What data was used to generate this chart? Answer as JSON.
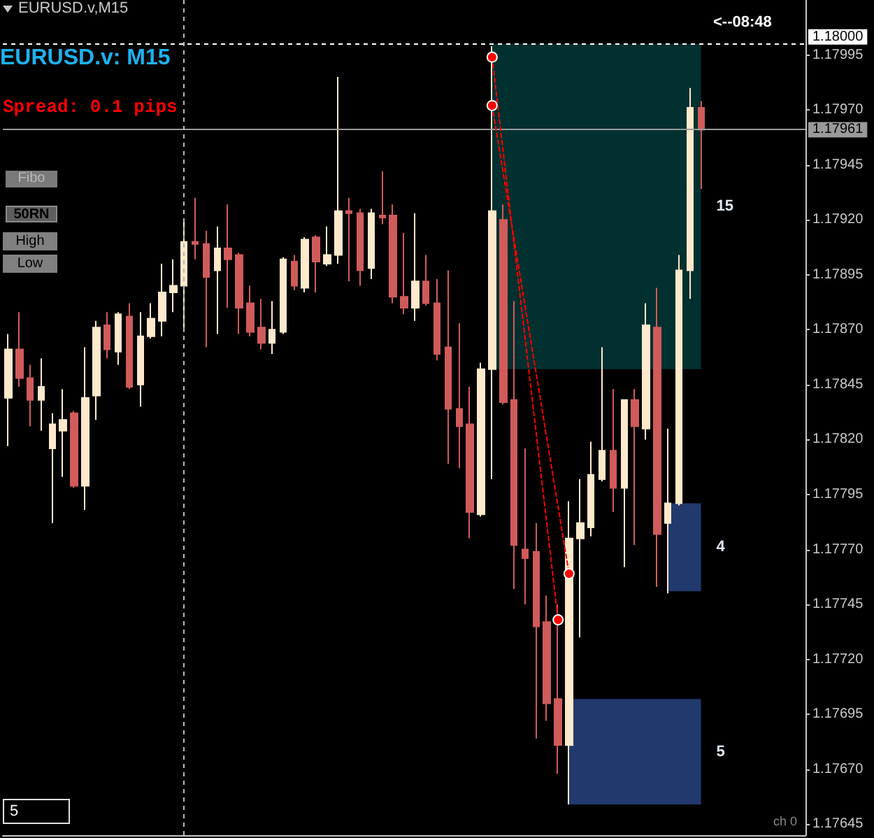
{
  "chart_data": {
    "type": "candlestick",
    "title": "EURUSD.v,M15",
    "subtitle": "EURUSD.v: M15",
    "annotations": [
      "Spread: 0.1 pips",
      "Fibo",
      "50RN",
      "High",
      "Low",
      "<--08:48",
      "5",
      "ch 0"
    ],
    "categories": [
      null,
      null,
      null,
      null,
      null,
      null,
      null,
      null,
      null,
      null,
      null,
      null,
      null,
      null,
      null,
      null,
      null,
      null,
      null,
      null,
      null,
      null,
      null,
      null,
      null,
      null,
      null,
      null,
      null,
      null,
      null,
      null,
      null,
      null,
      null,
      null,
      null,
      null,
      null,
      null,
      null,
      null,
      null,
      null,
      null,
      null,
      null,
      null,
      null,
      null,
      null,
      null,
      null,
      null,
      null,
      null,
      null,
      null,
      null,
      null,
      null,
      null,
      null,
      null,
      null,
      null,
      null,
      null,
      null,
      null,
      null,
      null,
      null
    ],
    "ohlc": [
      [
        1.17839,
        1.17868,
        1.17817,
        1.17861
      ],
      [
        1.17861,
        1.17878,
        1.17844,
        1.17848
      ],
      [
        1.17848,
        1.17854,
        1.17826,
        1.17838
      ],
      [
        1.17838,
        1.17857,
        1.17824,
        1.17844
      ],
      [
        1.17816,
        1.17832,
        1.17782,
        1.17827
      ],
      [
        1.17824,
        1.17843,
        1.17803,
        1.17829
      ],
      [
        1.17832,
        1.17833,
        1.17798,
        1.17799
      ],
      [
        1.17799,
        1.17862,
        1.17788,
        1.17839
      ],
      [
        1.1784,
        1.17874,
        1.17829,
        1.17871
      ],
      [
        1.17872,
        1.17878,
        1.17857,
        1.17861
      ],
      [
        1.1786,
        1.17878,
        1.17854,
        1.17877
      ],
      [
        1.17876,
        1.17882,
        1.17843,
        1.17844
      ],
      [
        1.17845,
        1.17878,
        1.17835,
        1.17867
      ],
      [
        1.17867,
        1.17882,
        1.17866,
        1.17875
      ],
      [
        1.17874,
        1.179,
        1.17867,
        1.17887
      ],
      [
        1.17887,
        1.17902,
        1.17878,
        1.1789
      ],
      [
        1.1789,
        1.1792,
        1.17869,
        1.1791
      ],
      [
        1.1791,
        1.1793,
        1.17902,
        1.17909
      ],
      [
        1.17909,
        1.17915,
        1.17862,
        1.17894
      ],
      [
        1.17897,
        1.17917,
        1.17868,
        1.17907
      ],
      [
        1.17907,
        1.17927,
        1.1788,
        1.17902
      ],
      [
        1.17904,
        1.17905,
        1.17868,
        1.1788
      ],
      [
        1.17882,
        1.1789,
        1.17867,
        1.17869
      ],
      [
        1.17871,
        1.17884,
        1.17861,
        1.17864
      ],
      [
        1.17864,
        1.17883,
        1.17859,
        1.1787
      ],
      [
        1.17869,
        1.17903,
        1.17868,
        1.17902
      ],
      [
        1.17901,
        1.17904,
        1.17888,
        1.1789
      ],
      [
        1.17889,
        1.17912,
        1.17887,
        1.17911
      ],
      [
        1.17912,
        1.17913,
        1.17887,
        1.17901
      ],
      [
        1.179,
        1.17917,
        1.17899,
        1.17904
      ],
      [
        1.17904,
        1.17985,
        1.179,
        1.17924
      ],
      [
        1.17924,
        1.1793,
        1.17892,
        1.17923
      ],
      [
        1.17923,
        1.17925,
        1.1789,
        1.17897
      ],
      [
        1.17898,
        1.17925,
        1.17893,
        1.17923
      ],
      [
        1.17922,
        1.17942,
        1.17918,
        1.17921
      ],
      [
        1.17922,
        1.17927,
        1.17882,
        1.17885
      ],
      [
        1.17885,
        1.17914,
        1.17877,
        1.1788
      ],
      [
        1.1788,
        1.17923,
        1.17874,
        1.17892
      ],
      [
        1.17892,
        1.17904,
        1.17881,
        1.17882
      ],
      [
        1.17882,
        1.17893,
        1.17856,
        1.17859
      ],
      [
        1.17862,
        1.17897,
        1.17809,
        1.17834
      ],
      [
        1.17834,
        1.17873,
        1.17807,
        1.17826
      ],
      [
        1.17827,
        1.17844,
        1.17775,
        1.17787
      ],
      [
        1.17786,
        1.17855,
        1.17785,
        1.17852
      ],
      [
        1.17852,
        1.17999,
        1.17802,
        1.17924
      ],
      [
        1.1792,
        1.17927,
        1.17836,
        1.17837
      ],
      [
        1.17838,
        1.17883,
        1.17752,
        1.17772
      ],
      [
        1.1777,
        1.17816,
        1.17745,
        1.17766
      ],
      [
        1.17769,
        1.17782,
        1.17684,
        1.17735
      ],
      [
        1.17737,
        1.17749,
        1.17692,
        1.177
      ],
      [
        1.17702,
        1.17745,
        1.17668,
        1.17681
      ],
      [
        1.17681,
        1.17792,
        1.17654,
        1.17775
      ],
      [
        1.17775,
        1.17802,
        1.1773,
        1.17782
      ],
      [
        1.1778,
        1.17819,
        1.17776,
        1.17804
      ],
      [
        1.17802,
        1.17862,
        1.17801,
        1.17815
      ],
      [
        1.17815,
        1.17843,
        1.17787,
        1.17798
      ],
      [
        1.17798,
        1.17838,
        1.17762,
        1.17838
      ],
      [
        1.17838,
        1.17843,
        1.17772,
        1.17826
      ],
      [
        1.17825,
        1.17882,
        1.1782,
        1.17872
      ],
      [
        1.17871,
        1.17889,
        1.17753,
        1.17777
      ],
      [
        1.17782,
        1.17825,
        1.1775,
        1.17791
      ],
      [
        1.17791,
        1.17904,
        1.1779,
        1.17897
      ],
      [
        1.17897,
        1.1798,
        1.17884,
        1.17971
      ],
      [
        1.17971,
        1.17974,
        1.17934,
        1.17961
      ],
      null,
      null,
      null,
      null,
      null,
      null,
      null,
      null,
      null
    ],
    "colors": [
      "#ffe9cc",
      "#d05b5b",
      "#d05b5b",
      "#ffe9cc",
      "#ffe9cc",
      "#ffe9cc",
      "#d05b5b",
      "#ffe9cc",
      "#ffe9cc",
      "#d05b5b",
      "#ffe9cc",
      "#d05b5b",
      "#ffe9cc",
      "#ffe9cc",
      "#ffe9cc",
      "#ffe9cc",
      "#ffe9cc",
      "#d05b5b",
      "#d05b5b",
      "#ffe9cc",
      "#d05b5b",
      "#d05b5b",
      "#d05b5b",
      "#d05b5b",
      "#ffe9cc",
      "#ffe9cc",
      "#d05b5b",
      "#ffe9cc",
      "#d05b5b",
      "#ffe9cc",
      "#ffe9cc",
      "#d05b5b",
      "#d05b5b",
      "#ffe9cc",
      "#d05b5b",
      "#d05b5b",
      "#d05b5b",
      "#ffe9cc",
      "#d05b5b",
      "#d05b5b",
      "#d05b5b",
      "#d05b5b",
      "#d05b5b",
      "#ffe9cc",
      "#ffe9cc",
      "#d05b5b",
      "#d05b5b",
      "#d05b5b",
      "#d05b5b",
      "#d05b5b",
      "#d05b5b",
      "#ffe9cc",
      "#ffe9cc",
      "#ffe9cc",
      "#ffe9cc",
      "#d05b5b",
      "#ffe9cc",
      "#d05b5b",
      "#ffe9cc",
      "#d05b5b",
      "#ffe9cc",
      "#ffe9cc",
      "#ffe9cc",
      "#d05b5b",
      null,
      null,
      null,
      null,
      null,
      null,
      null,
      null,
      null
    ],
    "series": [
      {
        "type": "line",
        "color": "#ff0000",
        "values": [
          null,
          null,
          null,
          null,
          null,
          null,
          null,
          null,
          null,
          null,
          null,
          null,
          null,
          null,
          null,
          null,
          null,
          null,
          null,
          null,
          null,
          null,
          null,
          null,
          null,
          null,
          null,
          null,
          null,
          null,
          null,
          null,
          null,
          null,
          null,
          null,
          null,
          null,
          null,
          null,
          null,
          null,
          null,
          null,
          1.17994,
          null,
          null,
          null,
          null,
          null,
          1.17738,
          null,
          null,
          null,
          null,
          null,
          null,
          null,
          null,
          null,
          null,
          null,
          null,
          null,
          null,
          null,
          null,
          null,
          null,
          null,
          null,
          null,
          null
        ]
      },
      {
        "type": "line",
        "color": "#ff0000",
        "values": [
          null,
          null,
          null,
          null,
          null,
          null,
          null,
          null,
          null,
          null,
          null,
          null,
          null,
          null,
          null,
          null,
          null,
          null,
          null,
          null,
          null,
          null,
          null,
          null,
          null,
          null,
          null,
          null,
          null,
          null,
          null,
          null,
          null,
          null,
          null,
          null,
          null,
          null,
          null,
          null,
          null,
          null,
          null,
          null,
          1.17972,
          null,
          null,
          null,
          null,
          null,
          null,
          1.17759,
          null,
          null,
          null,
          null,
          null,
          null,
          null,
          null,
          null,
          null,
          null,
          null,
          null,
          null,
          null,
          null,
          null,
          null,
          null,
          null,
          null
        ]
      }
    ],
    "line_style": "dashed",
    "marker": "circle",
    "ylim": [
      1.1764,
      1.1802
    ],
    "yticks": [
      1.17645,
      {
        "value": 1.1767,
        "label": "1.17670"
      },
      1.17695,
      {
        "value": 1.1772,
        "label": "1.17720"
      },
      1.17745,
      {
        "value": 1.1777,
        "label": "1.17770"
      },
      1.17795,
      {
        "value": 1.1782,
        "label": "1.17820"
      },
      1.17845,
      {
        "value": 1.1787,
        "label": "1.17870"
      },
      1.17895,
      {
        "value": 1.1792,
        "label": "1.17920"
      },
      1.17945,
      {
        "value": 1.1797,
        "label": "1.17970"
      },
      1.17995
    ],
    "tick_labels": "y",
    "ref_lines": [
      {
        "axis": "y",
        "value": 1.18,
        "label": "1.18000",
        "color": "#ffffff",
        "line_style": "dashed"
      },
      {
        "axis": "y",
        "value": 1.17961,
        "label": "1.17961",
        "color": "#9a9a9a",
        "line_style": "solid"
      }
    ],
    "bands": [
      {
        "axis": "y",
        "from": 1.17852,
        "to": 1.18,
        "label": "15",
        "color": "#00302f"
      },
      {
        "axis": "y",
        "from": 1.17751,
        "to": 1.17791,
        "label": "4",
        "color": "#22396d"
      },
      {
        "axis": "y",
        "from": 1.17654,
        "to": 1.17702,
        "label": "5",
        "color": "#22396d"
      }
    ],
    "grid": false
  }
}
